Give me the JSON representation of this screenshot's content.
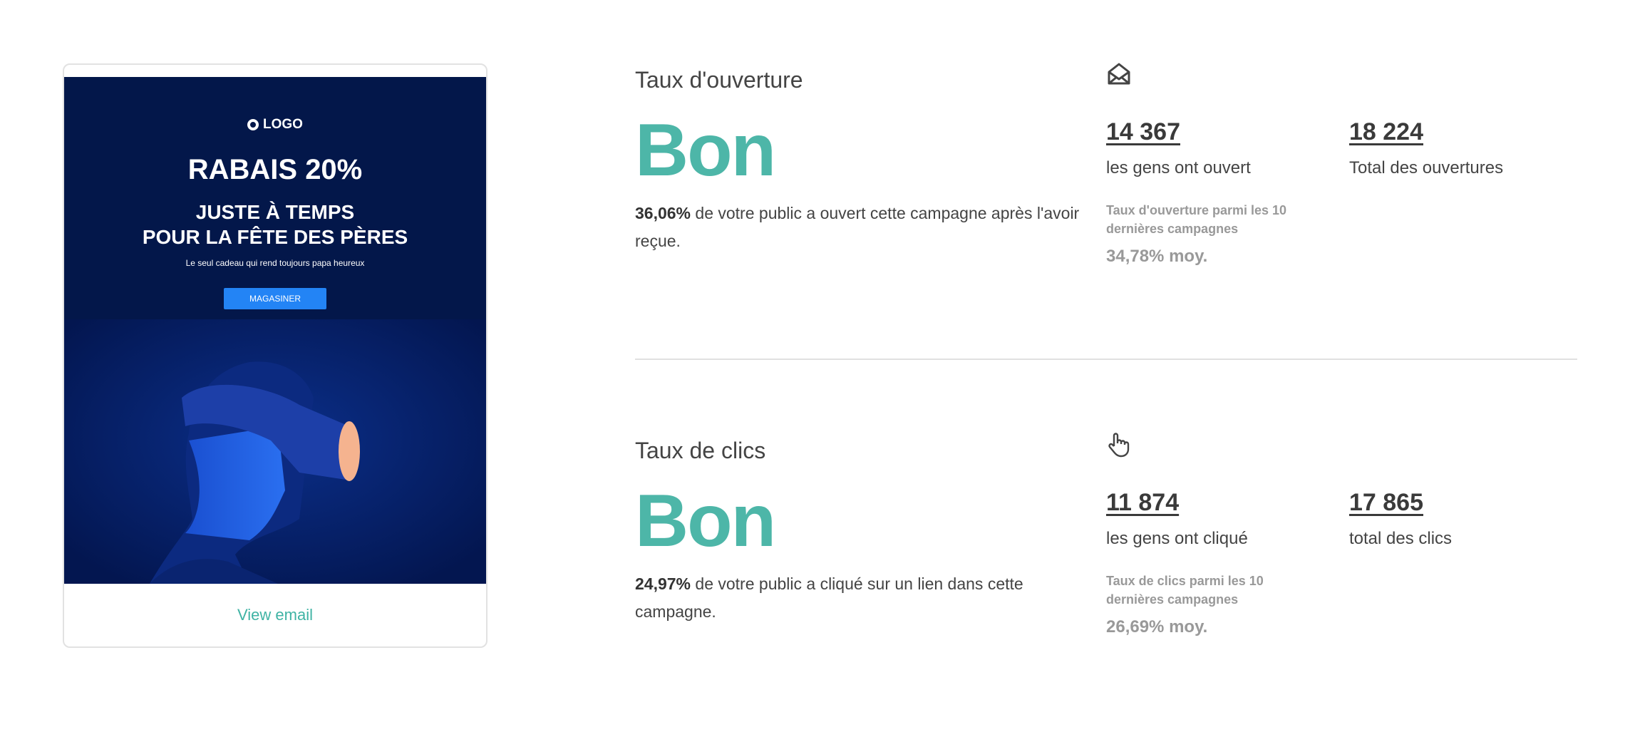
{
  "email_preview": {
    "logo_text": "LOGO",
    "headline": "RABAIS 20%",
    "subheadline_line1": "JUSTE À TEMPS",
    "subheadline_line2": "POUR LA FÊTE DES PÈRES",
    "tagline": "Le seul cadeau qui rend toujours papa heureux",
    "cta_label": "MAGASINER",
    "view_link": "View email"
  },
  "open_rate": {
    "title": "Taux d'ouverture",
    "icon": "envelope-open-icon",
    "rating": "Bon",
    "percent": "36,06%",
    "description": " de votre public a ouvert cette campagne après l'avoir reçue.",
    "people_count": "14 367",
    "people_label": "les gens ont ouvert",
    "total_count": "18 224",
    "total_label": "Total des ouvertures",
    "benchmark_label": "Taux d'ouverture parmi les 10 dernières campagnes",
    "benchmark_value": "34,78% moy."
  },
  "click_rate": {
    "title": "Taux de clics",
    "icon": "hand-pointer-icon",
    "rating": "Bon",
    "percent": "24,97%",
    "description": " de votre public a cliqué sur un lien dans cette campagne.",
    "people_count": "11 874",
    "people_label": "les gens ont cliqué",
    "total_count": "17 865",
    "total_label": "total des clics",
    "benchmark_label": "Taux de clics parmi les 10 dernières campagnes",
    "benchmark_value": "26,69% moy."
  },
  "colors": {
    "accent": "#4db6a8",
    "email_bg": "#03174a",
    "cta": "#2384f5"
  }
}
